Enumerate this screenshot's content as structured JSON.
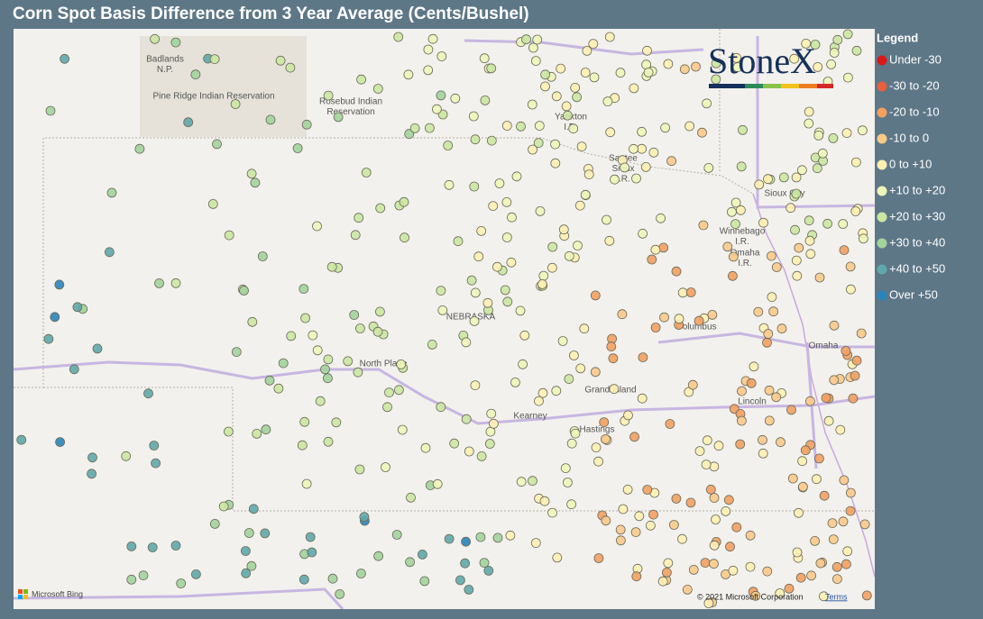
{
  "header": {
    "title": "Corn Spot Basis Difference from 3 Year Average (Cents/Bushel)"
  },
  "legend": {
    "title": "Legend",
    "items": [
      {
        "label": "Under -30",
        "color": "#d7191c"
      },
      {
        "label": "-30 to -20",
        "color": "#e8603c"
      },
      {
        "label": "-20 to -10",
        "color": "#f2a05f"
      },
      {
        "label": "-10 to 0",
        "color": "#f9c98a"
      },
      {
        "label": "0 to +10",
        "color": "#fdefb2"
      },
      {
        "label": "+10 to +20",
        "color": "#eef5b8"
      },
      {
        "label": "+20 to +30",
        "color": "#cbe7a2"
      },
      {
        "label": "+30 to +40",
        "color": "#a2d39c"
      },
      {
        "label": "+40 to +50",
        "color": "#5fa8aa"
      },
      {
        "label": "Over +50",
        "color": "#2b83ba"
      }
    ]
  },
  "logo": "StoneX",
  "map_labels": [
    {
      "lines": [
        "Badlands",
        "N.P."
      ]
    },
    {
      "lines": [
        "Pine Ridge Indian Reservation"
      ]
    },
    {
      "lines": [
        "Rosebud Indian",
        "Reservation"
      ]
    },
    {
      "lines": [
        "Yankton",
        "I.R."
      ]
    },
    {
      "lines": [
        "Santee",
        "Sioux",
        "I.R."
      ]
    },
    {
      "lines": [
        "Sioux City"
      ]
    },
    {
      "lines": [
        "Winnebago",
        "I.R."
      ]
    },
    {
      "lines": [
        "Omaha",
        "I.R."
      ]
    },
    {
      "lines": [
        "NEBRASKA"
      ]
    },
    {
      "lines": [
        "North Platte"
      ]
    },
    {
      "lines": [
        "Columbus"
      ]
    },
    {
      "lines": [
        "Omaha"
      ]
    },
    {
      "lines": [
        "Grand Island"
      ]
    },
    {
      "lines": [
        "Kearney"
      ]
    },
    {
      "lines": [
        "Hastings"
      ]
    },
    {
      "lines": [
        "Lincoln"
      ]
    }
  ],
  "attribution": {
    "provider": "Microsoft Bing",
    "copyright": "© 2021 Microsoft Corporation",
    "terms": "Terms"
  }
}
